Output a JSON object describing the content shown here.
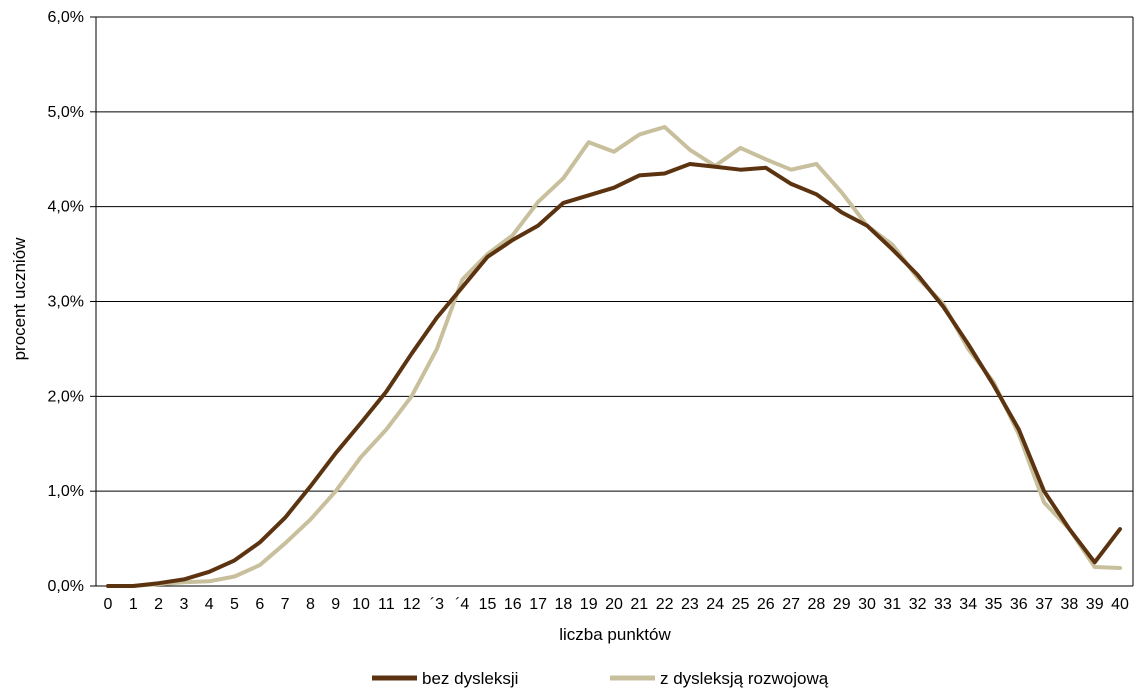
{
  "chart_data": {
    "type": "line",
    "title": "",
    "xlabel": "liczba punktów",
    "ylabel": "procent uczniów",
    "x": [
      0,
      1,
      2,
      3,
      4,
      5,
      6,
      7,
      8,
      9,
      10,
      11,
      12,
      13,
      14,
      15,
      16,
      17,
      18,
      19,
      20,
      21,
      22,
      23,
      24,
      25,
      26,
      27,
      28,
      29,
      30,
      31,
      32,
      33,
      34,
      35,
      36,
      37,
      38,
      39,
      40
    ],
    "x_tick_labels": [
      "0",
      "1",
      "2",
      "3",
      "4",
      "5",
      "6",
      "7",
      "8",
      "9",
      "10",
      "11",
      "12",
      "´3",
      "´4",
      "15",
      "16",
      "17",
      "18",
      "19",
      "20",
      "21",
      "22",
      "23",
      "24",
      "25",
      "26",
      "27",
      "28",
      "29",
      "30",
      "31",
      "32",
      "33",
      "34",
      "35",
      "36",
      "37",
      "38",
      "39",
      "40"
    ],
    "ylim": [
      0,
      6
    ],
    "y_ticks": [
      0,
      1,
      2,
      3,
      4,
      5,
      6
    ],
    "y_tick_labels": [
      "0,0%",
      "1,0%",
      "2,0%",
      "3,0%",
      "4,0%",
      "5,0%",
      "6,0%"
    ],
    "grid": true,
    "legend_position": "bottom",
    "series": [
      {
        "name": "bez dysleksji",
        "color": "#5c3310",
        "values": [
          0.0,
          0.0,
          0.03,
          0.07,
          0.15,
          0.27,
          0.46,
          0.72,
          1.05,
          1.4,
          1.72,
          2.05,
          2.45,
          2.83,
          3.15,
          3.47,
          3.65,
          3.8,
          4.04,
          4.12,
          4.2,
          4.33,
          4.35,
          4.45,
          4.42,
          4.39,
          4.41,
          4.24,
          4.13,
          3.94,
          3.8,
          3.55,
          3.28,
          2.95,
          2.55,
          2.12,
          1.65,
          1.0,
          0.6,
          0.25,
          0.6
        ]
      },
      {
        "name": "z dysleksją rozwojową",
        "color": "#c8bf9c",
        "values": [
          0.0,
          0.0,
          0.02,
          0.04,
          0.05,
          0.1,
          0.22,
          0.45,
          0.7,
          1.0,
          1.36,
          1.65,
          2.0,
          2.5,
          3.23,
          3.5,
          3.7,
          4.05,
          4.3,
          4.68,
          4.58,
          4.76,
          4.84,
          4.6,
          4.43,
          4.62,
          4.5,
          4.39,
          4.45,
          4.15,
          3.8,
          3.6,
          3.25,
          2.98,
          2.5,
          2.15,
          1.6,
          0.88,
          0.6,
          0.2,
          0.19
        ]
      }
    ]
  }
}
